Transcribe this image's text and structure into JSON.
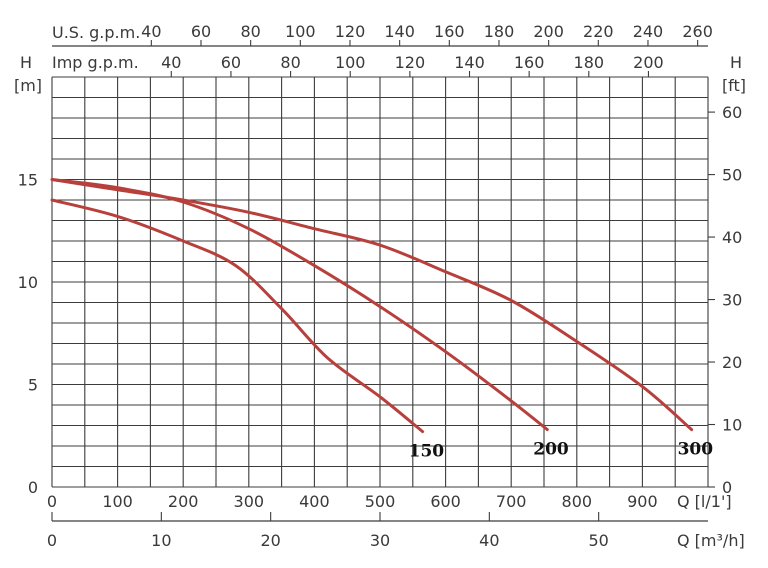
{
  "chart_data": {
    "type": "line",
    "colors": {
      "curve": "#b8403c",
      "grid": "#3c3c3c",
      "text": "#3a3a3a"
    },
    "grid": true,
    "x_axis_flow_lmin": {
      "label": "Q [l/1']",
      "range": [
        0,
        1000
      ],
      "ticks": [
        "0",
        "100",
        "200",
        "300",
        "400",
        "500",
        "600",
        "700",
        "800",
        "900"
      ]
    },
    "x_axis_flow_m3h": {
      "label": "Q [m³/h]",
      "range": [
        0,
        60
      ],
      "ticks": [
        "0",
        "10",
        "20",
        "30",
        "40",
        "50"
      ]
    },
    "x_axis_us_gpm": {
      "label": "U.S. g.p.m.",
      "ticks": [
        "40",
        "60",
        "80",
        "100",
        "120",
        "140",
        "160",
        "180",
        "200",
        "220",
        "240",
        "260"
      ]
    },
    "x_axis_imp_gpm": {
      "label": "Imp g.p.m.",
      "ticks": [
        "40",
        "60",
        "80",
        "100",
        "120",
        "140",
        "160",
        "180",
        "200"
      ]
    },
    "y_axis_left": {
      "label_top": "H",
      "unit": "[m]",
      "range": [
        0,
        20
      ],
      "ticks": [
        "0",
        "5",
        "10",
        "15"
      ]
    },
    "y_axis_right": {
      "label_top": "H",
      "unit": "[ft]",
      "ticks": [
        "0",
        "10",
        "20",
        "30",
        "40",
        "50",
        "60"
      ]
    },
    "series": [
      {
        "name": "150",
        "x": [
          0,
          100,
          200,
          280,
          350,
          420,
          500,
          565
        ],
        "y": [
          14.0,
          13.2,
          12.0,
          10.8,
          8.7,
          6.3,
          4.4,
          2.7
        ]
      },
      {
        "name": "200",
        "x": [
          0,
          100,
          200,
          300,
          400,
          500,
          600,
          700,
          755
        ],
        "y": [
          15.0,
          14.6,
          13.9,
          12.6,
          10.8,
          8.8,
          6.6,
          4.2,
          2.8
        ]
      },
      {
        "name": "300",
        "x": [
          0,
          100,
          200,
          300,
          400,
          500,
          600,
          700,
          800,
          900,
          975
        ],
        "y": [
          15.0,
          14.5,
          14.0,
          13.4,
          12.6,
          11.8,
          10.5,
          9.1,
          7.1,
          4.9,
          2.8
        ]
      }
    ]
  }
}
